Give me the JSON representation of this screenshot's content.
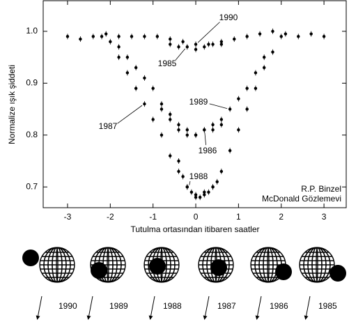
{
  "chart_data": {
    "type": "scatter",
    "xlabel": "Tutulma ortasından itibaren saatler",
    "ylabel": "Normalize ışık şiddeti",
    "xlim": [
      -3.57,
      3.52
    ],
    "ylim": [
      0.66,
      1.059
    ],
    "xticks": [
      -3,
      -2,
      -1,
      0,
      1,
      2,
      3
    ],
    "yticks": [
      0.7,
      0.8,
      0.9,
      {
        "value": 1,
        "label": "1.0"
      }
    ],
    "annotations": [
      "R.P. Binzel",
      "McDonald Gözlemevi"
    ],
    "series": [
      {
        "name": "1990",
        "color": "#000000",
        "x": [
          -3,
          -2.7,
          -2.4,
          -2.1,
          -1.8,
          -1.5,
          -1.2,
          -0.9,
          -0.6,
          -0.3,
          0,
          0.3,
          0.6,
          0.9,
          1.2,
          1.5,
          1.8,
          2.1,
          2.4,
          2.7,
          3
        ],
        "values": [
          0.99,
          0.985,
          0.99,
          0.995,
          0.99,
          0.99,
          0.99,
          0.99,
          0.985,
          0.98,
          0.975,
          0.975,
          0.98,
          0.985,
          0.99,
          0.995,
          1.0,
          0.995,
          0.99,
          0.995,
          0.99
        ]
      },
      {
        "name": "1985",
        "color": "#000000",
        "x": [
          -0.6,
          -0.4,
          -0.2,
          0,
          0.2,
          0.4,
          0.6
        ],
        "values": [
          0.975,
          0.97,
          0.97,
          0.965,
          0.97,
          0.975,
          0.975
        ]
      },
      {
        "name": "1989",
        "color": "#000000",
        "x": [
          -1.8,
          -1.6,
          -1.4,
          -1.2,
          -1.0,
          -0.8,
          -0.6,
          -0.4,
          -0.2,
          0,
          0.2,
          0.4,
          0.6,
          0.8,
          1.0,
          1.2,
          1.4,
          1.6
        ],
        "values": [
          0.97,
          0.95,
          0.93,
          0.91,
          0.89,
          0.86,
          0.84,
          0.82,
          0.81,
          0.8,
          0.81,
          0.82,
          0.83,
          0.85,
          0.87,
          0.89,
          0.92,
          0.95
        ]
      },
      {
        "name": "1987",
        "color": "#000000",
        "x": [
          -2.2,
          -2.0,
          -1.8,
          -1.6,
          -1.4,
          -1.2,
          -1.0,
          -0.8,
          -0.6,
          -0.4,
          -0.2,
          0,
          0.2,
          0.4,
          0.6,
          0.8,
          1.0,
          1.2,
          1.4,
          1.6,
          1.8,
          2.0
        ],
        "values": [
          0.99,
          0.98,
          0.95,
          0.92,
          0.89,
          0.86,
          0.83,
          0.8,
          0.76,
          0.73,
          0.7,
          0.685,
          0.69,
          0.7,
          0.73,
          0.77,
          0.81,
          0.85,
          0.89,
          0.93,
          0.96,
          0.99
        ]
      },
      {
        "name": "1986",
        "color": "#000000",
        "x": [
          -0.8,
          -0.6,
          -0.4,
          -0.2,
          0,
          0.2,
          0.4,
          0.6
        ],
        "values": [
          0.85,
          0.83,
          0.81,
          0.8,
          0.8,
          0.81,
          0.81,
          0.82
        ]
      },
      {
        "name": "1988",
        "color": "#000000",
        "x": [
          -0.4,
          -0.3,
          -0.2,
          -0.1,
          0,
          0.1,
          0.2,
          0.3,
          0.4,
          0.5
        ],
        "values": [
          0.75,
          0.72,
          0.7,
          0.69,
          0.68,
          0.68,
          0.685,
          0.69,
          0.7,
          0.71
        ]
      }
    ]
  },
  "diagram": {
    "labels": [
      "1990",
      "1989",
      "1988",
      "1987",
      "1986",
      "1985"
    ]
  }
}
